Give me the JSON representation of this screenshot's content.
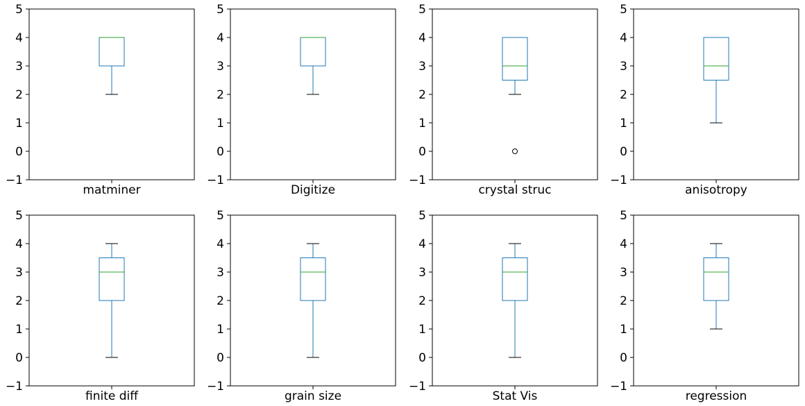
{
  "style": {
    "box_color": "#1f77b4",
    "median_color": "#2ca02c",
    "axis_color": "#000000"
  },
  "chart_data": [
    {
      "type": "box",
      "xlabel": "matminer",
      "ylim": [
        -1,
        5
      ],
      "yticks": [
        -1,
        0,
        1,
        2,
        3,
        4,
        5
      ],
      "whisker_low": 2,
      "q1": 3,
      "median": 4,
      "q3": 4,
      "whisker_high": 4,
      "outliers": []
    },
    {
      "type": "box",
      "xlabel": "Digitize",
      "ylim": [
        -1,
        5
      ],
      "yticks": [
        -1,
        0,
        1,
        2,
        3,
        4,
        5
      ],
      "whisker_low": 2,
      "q1": 3,
      "median": 4,
      "q3": 4,
      "whisker_high": 4,
      "outliers": []
    },
    {
      "type": "box",
      "xlabel": "crystal struc",
      "ylim": [
        -1,
        5
      ],
      "yticks": [
        -1,
        0,
        1,
        2,
        3,
        4,
        5
      ],
      "whisker_low": 2,
      "q1": 2.5,
      "median": 3,
      "q3": 4,
      "whisker_high": 4,
      "outliers": [
        0
      ]
    },
    {
      "type": "box",
      "xlabel": "anisotropy",
      "ylim": [
        -1,
        5
      ],
      "yticks": [
        -1,
        0,
        1,
        2,
        3,
        4,
        5
      ],
      "whisker_low": 1,
      "q1": 2.5,
      "median": 3,
      "q3": 4,
      "whisker_high": 4,
      "outliers": []
    },
    {
      "type": "box",
      "xlabel": "finite diff",
      "ylim": [
        -1,
        5
      ],
      "yticks": [
        -1,
        0,
        1,
        2,
        3,
        4,
        5
      ],
      "whisker_low": 0,
      "q1": 2,
      "median": 3,
      "q3": 3.5,
      "whisker_high": 4,
      "outliers": []
    },
    {
      "type": "box",
      "xlabel": "grain size",
      "ylim": [
        -1,
        5
      ],
      "yticks": [
        -1,
        0,
        1,
        2,
        3,
        4,
        5
      ],
      "whisker_low": 0,
      "q1": 2,
      "median": 3,
      "q3": 3.5,
      "whisker_high": 4,
      "outliers": []
    },
    {
      "type": "box",
      "xlabel": "Stat Vis",
      "ylim": [
        -1,
        5
      ],
      "yticks": [
        -1,
        0,
        1,
        2,
        3,
        4,
        5
      ],
      "whisker_low": 0,
      "q1": 2,
      "median": 3,
      "q3": 3.5,
      "whisker_high": 4,
      "outliers": []
    },
    {
      "type": "box",
      "xlabel": "regression",
      "ylim": [
        -1,
        5
      ],
      "yticks": [
        -1,
        0,
        1,
        2,
        3,
        4,
        5
      ],
      "whisker_low": 1,
      "q1": 2,
      "median": 3,
      "q3": 3.5,
      "whisker_high": 4,
      "outliers": []
    }
  ]
}
